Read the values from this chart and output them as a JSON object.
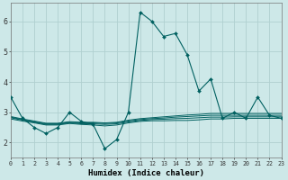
{
  "xlabel": "Humidex (Indice chaleur)",
  "background_color": "#cde8e8",
  "grid_color": "#b0d0d0",
  "line_color": "#006060",
  "x_ticks": [
    0,
    1,
    2,
    3,
    4,
    5,
    6,
    7,
    8,
    9,
    10,
    11,
    12,
    13,
    14,
    15,
    16,
    17,
    18,
    19,
    20,
    21,
    22,
    23
  ],
  "ylim": [
    1.5,
    6.6
  ],
  "xlim": [
    0,
    23
  ],
  "main_series": [
    3.5,
    2.8,
    2.5,
    2.3,
    2.5,
    3.0,
    2.7,
    2.6,
    1.8,
    2.1,
    3.0,
    6.3,
    6.0,
    5.5,
    5.6,
    4.9,
    3.7,
    4.1,
    2.8,
    3.0,
    2.8,
    3.5,
    2.9,
    2.8
  ],
  "flat_lines": [
    [
      2.78,
      2.71,
      2.65,
      2.58,
      2.58,
      2.63,
      2.6,
      2.58,
      2.55,
      2.58,
      2.65,
      2.7,
      2.72,
      2.72,
      2.73,
      2.73,
      2.75,
      2.78,
      2.78,
      2.8,
      2.8,
      2.8,
      2.8,
      2.8
    ],
    [
      2.82,
      2.74,
      2.67,
      2.6,
      2.6,
      2.65,
      2.62,
      2.62,
      2.6,
      2.62,
      2.68,
      2.73,
      2.76,
      2.77,
      2.79,
      2.8,
      2.82,
      2.84,
      2.84,
      2.85,
      2.85,
      2.85,
      2.85,
      2.85
    ],
    [
      2.84,
      2.76,
      2.69,
      2.62,
      2.62,
      2.67,
      2.65,
      2.65,
      2.63,
      2.65,
      2.71,
      2.76,
      2.79,
      2.81,
      2.84,
      2.86,
      2.88,
      2.9,
      2.9,
      2.9,
      2.9,
      2.9,
      2.9,
      2.9
    ],
    [
      2.86,
      2.78,
      2.71,
      2.64,
      2.64,
      2.69,
      2.67,
      2.67,
      2.65,
      2.67,
      2.74,
      2.79,
      2.82,
      2.85,
      2.88,
      2.91,
      2.93,
      2.96,
      2.96,
      2.96,
      2.96,
      2.96,
      2.96,
      2.96
    ]
  ]
}
